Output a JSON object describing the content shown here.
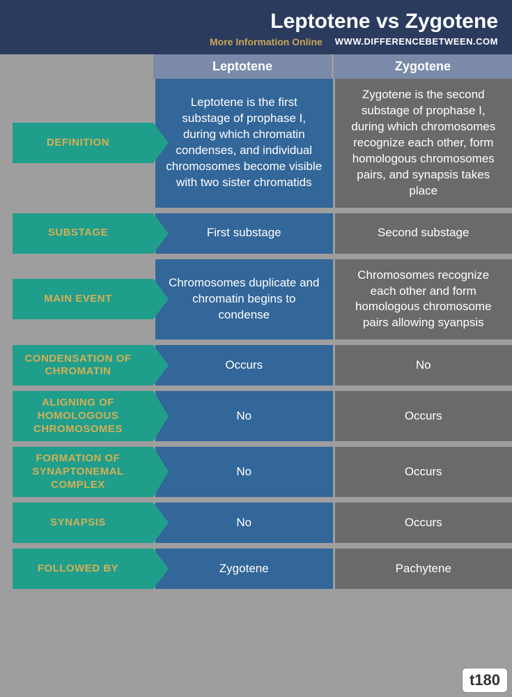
{
  "header": {
    "title": "Leptotene vs Zygotene",
    "more_info": "More Information Online",
    "url": "WWW.DIFFERENCEBETWEEN.COM"
  },
  "columns": {
    "left": "Leptotene",
    "right": "Zygotene"
  },
  "rows": [
    {
      "label": "DEFINITION",
      "lep": "Leptotene is the first substage of prophase I, during which chromatin condenses, and individual chromosomes become visible with two sister chromatids",
      "zyg": "Zygotene is the second substage of prophase I, during which chromosomes recognize each other, form homologous chromosomes pairs, and synapsis takes place",
      "tall": false
    },
    {
      "label": "SUBSTAGE",
      "lep": "First substage",
      "zyg": "Second substage",
      "tall": false
    },
    {
      "label": "MAIN EVENT",
      "lep": "Chromosomes duplicate and chromatin begins to condense",
      "zyg": "Chromosomes recognize each other and form homologous chromosome pairs allowing syanpsis",
      "tall": false
    },
    {
      "label": "CONDENSATION OF CHROMATIN",
      "lep": "Occurs",
      "zyg": "No",
      "tall": false
    },
    {
      "label": "ALIGNING OF HOMOLOGOUS CHROMOSOMES",
      "lep": "No",
      "zyg": "Occurs",
      "tall": true
    },
    {
      "label": "FORMATION OF SYNAPTONEMAL COMPLEX",
      "lep": "No",
      "zyg": "Occurs",
      "tall": true
    },
    {
      "label": "SYNAPSIS",
      "lep": "No",
      "zyg": "Occurs",
      "tall": false
    },
    {
      "label": "FOLLOWED BY",
      "lep": "Zygotene",
      "zyg": "Pachytene",
      "tall": false
    }
  ],
  "watermark": "t180",
  "colors": {
    "page_bg": "#9e9e9e",
    "header_bg": "#2b3b5e",
    "title_color": "#ffffff",
    "more_info_color": "#c9a657",
    "url_color": "#ffffff",
    "col_header_bg": "#7a8aa8",
    "label_bg": "#1f9e8c",
    "label_text": "#d4b055",
    "lep_bg": "#336699",
    "zyg_bg": "#6a6a6a",
    "cell_text": "#ffffff"
  }
}
